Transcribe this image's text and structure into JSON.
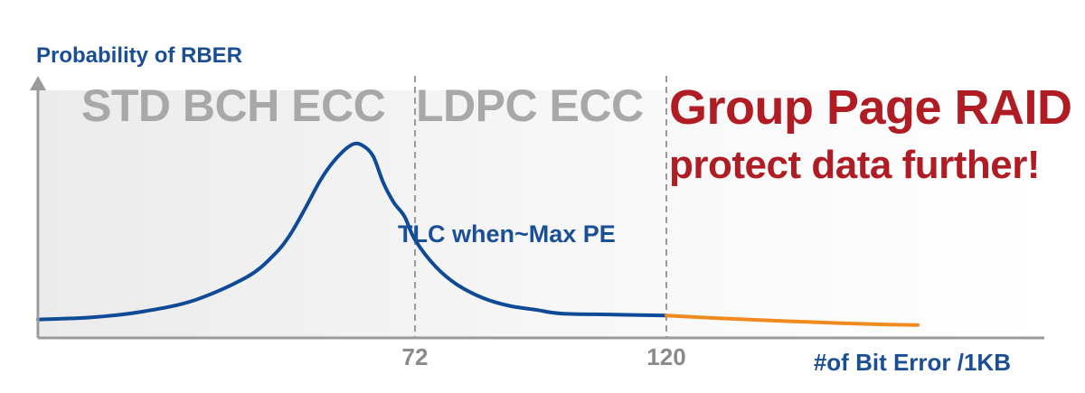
{
  "chart_data": {
    "type": "line",
    "ylabel": "Probability of RBER",
    "xlabel": "#of Bit Error /1KB",
    "xlim": [
      0,
      192
    ],
    "ylim": [
      0,
      1.0
    ],
    "x_ticks": [
      "72",
      "120"
    ],
    "x_tick_values": [
      72,
      120
    ],
    "grid": false,
    "regions": [
      {
        "name": "STD BCH ECC",
        "from": 0,
        "to": 72,
        "color": "#a8a8a8"
      },
      {
        "name": "LDPC ECC",
        "from": 72,
        "to": 120,
        "color": "#a8a8a8"
      },
      {
        "name": "Group Page RAID",
        "subtitle": "protect data further!",
        "from": 120,
        "to": 192,
        "color": "#b01c24"
      }
    ],
    "annotation": "TLC when~Max PE",
    "series": [
      {
        "color": "#0f4a96",
        "x": [
          0,
          10,
          20,
          30,
          40,
          45,
          48,
          51,
          54,
          57,
          60,
          62,
          64,
          66,
          68,
          70,
          72,
          76,
          80,
          85,
          90,
          95,
          100,
          110,
          120
        ],
        "y": [
          0.03,
          0.04,
          0.07,
          0.13,
          0.25,
          0.36,
          0.46,
          0.6,
          0.75,
          0.86,
          0.93,
          0.925,
          0.87,
          0.73,
          0.63,
          0.56,
          0.44,
          0.3,
          0.21,
          0.14,
          0.1,
          0.08,
          0.06,
          0.055,
          0.05
        ]
      },
      {
        "color": "#ef8a1f",
        "x": [
          120,
          130,
          140,
          150,
          160,
          168
        ],
        "y": [
          0.05,
          0.036,
          0.024,
          0.014,
          0.005,
          0.001
        ]
      }
    ]
  }
}
